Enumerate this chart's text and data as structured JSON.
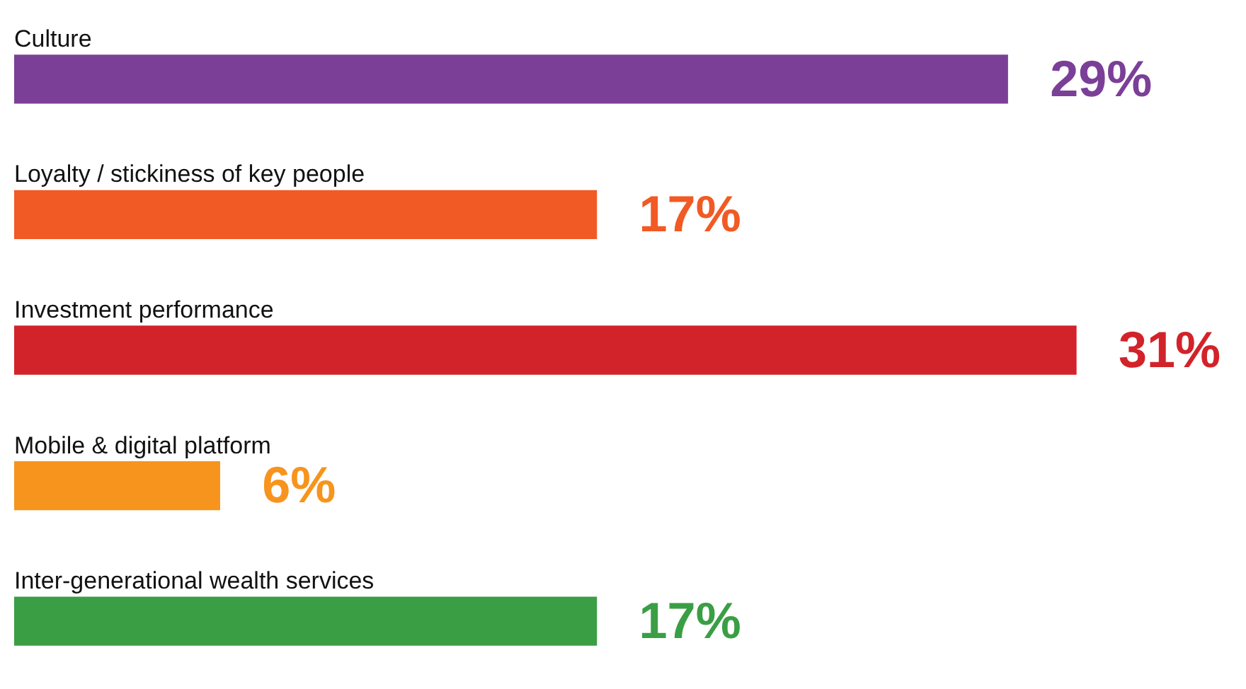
{
  "chart_data": {
    "type": "bar",
    "orientation": "horizontal",
    "categories": [
      "Culture",
      "Loyalty / stickiness of key people",
      "Investment performance",
      "Mobile & digital platform",
      "Inter-generational wealth services"
    ],
    "values": [
      29,
      17,
      31,
      6,
      17
    ],
    "colors": [
      "#7b3f98",
      "#f15a24",
      "#d2232a",
      "#f7941d",
      "#3a9e45"
    ],
    "value_labels": [
      "29%",
      "17%",
      "31%",
      "6%",
      "17%"
    ]
  }
}
